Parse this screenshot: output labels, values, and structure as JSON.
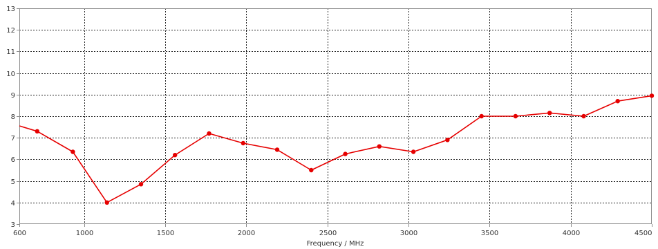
{
  "chart_data": {
    "type": "line",
    "title": "",
    "xlabel": "Frequency / MHz",
    "ylabel": "",
    "xlim": [
      600,
      4500
    ],
    "ylim": [
      3,
      13
    ],
    "x_ticks": [
      600,
      1000,
      1500,
      2000,
      2500,
      3000,
      3500,
      4000,
      4500
    ],
    "y_ticks": [
      3,
      4,
      5,
      6,
      7,
      8,
      9,
      10,
      11,
      12,
      13
    ],
    "x_gridlines": [
      1000,
      1500,
      2000,
      2500,
      3000,
      3500,
      4000
    ],
    "y_gridlines": [
      4,
      5,
      6,
      7,
      8,
      9,
      10,
      11,
      12
    ],
    "grid": true,
    "legend": "none",
    "series_color": "#e60000",
    "series": [
      {
        "x": [
          600,
          710,
          930,
          1140,
          1350,
          1560,
          1770,
          1980,
          2190,
          2400,
          2610,
          2820,
          3030,
          3240,
          3450,
          3660,
          3870,
          4080,
          4290,
          4500
        ],
        "y": [
          7.55,
          7.3,
          6.35,
          4.0,
          4.85,
          6.2,
          7.2,
          6.75,
          6.45,
          5.5,
          6.25,
          6.6,
          6.35,
          6.9,
          8.0,
          8.0,
          8.15,
          8.0,
          8.7,
          8.95
        ],
        "markers": [
          false,
          true,
          true,
          true,
          true,
          true,
          true,
          true,
          true,
          true,
          true,
          true,
          true,
          true,
          true,
          true,
          true,
          true,
          true,
          true
        ]
      }
    ]
  }
}
